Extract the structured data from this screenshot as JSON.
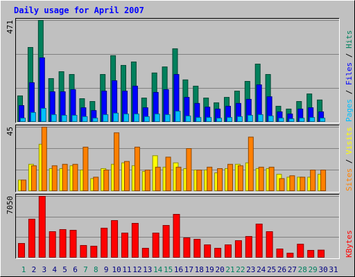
{
  "chart_data": [
    {
      "type": "bar",
      "title": "Daily usage for April 2007",
      "legend_separator": " / ",
      "series": [
        {
          "name": "Pages",
          "color": "#00c0ff",
          "values": [
            19,
            45,
            64,
            35,
            32,
            32,
            26,
            19,
            35,
            42,
            38,
            38,
            26,
            38,
            35,
            51,
            29,
            22,
            22,
            19,
            22,
            26,
            32,
            35,
            29,
            19,
            16,
            19,
            22,
            19,
            null
          ]
        },
        {
          "name": "Files",
          "color": "#0000ff",
          "values": [
            77,
            183,
            298,
            141,
            141,
            151,
            67,
            54,
            144,
            192,
            144,
            167,
            67,
            138,
            151,
            221,
            115,
            87,
            70,
            61,
            74,
            87,
            106,
            173,
            118,
            48,
            38,
            61,
            67,
            48,
            null
          ]
        },
        {
          "name": "Hits",
          "color": "#00805c",
          "values": [
            122,
            346,
            471,
            202,
            234,
            221,
            109,
            96,
            221,
            308,
            263,
            279,
            112,
            228,
            256,
            340,
            196,
            167,
            112,
            90,
            115,
            144,
            189,
            269,
            221,
            74,
            61,
            96,
            131,
            103,
            null
          ]
        }
      ],
      "ylim": [
        0,
        471
      ],
      "yticks": [
        471
      ],
      "grid": true
    },
    {
      "type": "bar",
      "legend_separator": " / ",
      "series": [
        {
          "name": "Sites",
          "color": "#ff8000",
          "values": [
            8,
            18,
            45,
            18,
            19,
            19,
            31,
            10,
            15,
            41,
            21,
            31,
            15,
            17,
            24,
            17,
            30,
            15,
            17,
            16,
            19,
            18,
            38,
            17,
            17,
            9,
            11,
            10,
            15,
            15,
            null
          ]
        },
        {
          "name": "Visits",
          "color": "#ffff00",
          "values": [
            8,
            19,
            33,
            16,
            16,
            18,
            15,
            9,
            16,
            19,
            20,
            18,
            14,
            25,
            17,
            20,
            16,
            15,
            15,
            13,
            16,
            19,
            20,
            16,
            16,
            12,
            10,
            10,
            10,
            12,
            null
          ]
        }
      ],
      "ylim": [
        0,
        45
      ],
      "yticks": [
        45
      ],
      "grid": true
    },
    {
      "type": "bar",
      "legend_separator": " / ",
      "categories": [
        "1",
        "2",
        "3",
        "4",
        "5",
        "6",
        "7",
        "8",
        "9",
        "10",
        "11",
        "12",
        "13",
        "14",
        "15",
        "16",
        "17",
        "18",
        "19",
        "20",
        "21",
        "22",
        "23",
        "24",
        "25",
        "26",
        "27",
        "28",
        "29",
        "30",
        "31"
      ],
      "category_colors": [
        "#008060",
        "#000080",
        "#000080",
        "#000080",
        "#000080",
        "#000080",
        "#008060",
        "#008060",
        "#000080",
        "#000080",
        "#000080",
        "#000080",
        "#000080",
        "#008060",
        "#008060",
        "#000080",
        "#000080",
        "#000080",
        "#000080",
        "#000080",
        "#008060",
        "#008060",
        "#000080",
        "#000080",
        "#000080",
        "#000080",
        "#000080",
        "#008060",
        "#008060",
        "#000080",
        "#000080"
      ],
      "series": [
        {
          "name": "KBytes",
          "color": "#ff0000",
          "values": [
            1660,
            4440,
            7050,
            3010,
            3250,
            3170,
            1430,
            1350,
            3410,
            4280,
            2850,
            3960,
            1110,
            2850,
            3720,
            4990,
            2300,
            2140,
            1500,
            1110,
            1500,
            1980,
            2460,
            3880,
            3010,
            1030,
            550,
            1580,
            870,
            900,
            null
          ]
        }
      ],
      "ylim": [
        0,
        7050
      ],
      "yticks": [
        7050
      ],
      "grid": true
    }
  ]
}
